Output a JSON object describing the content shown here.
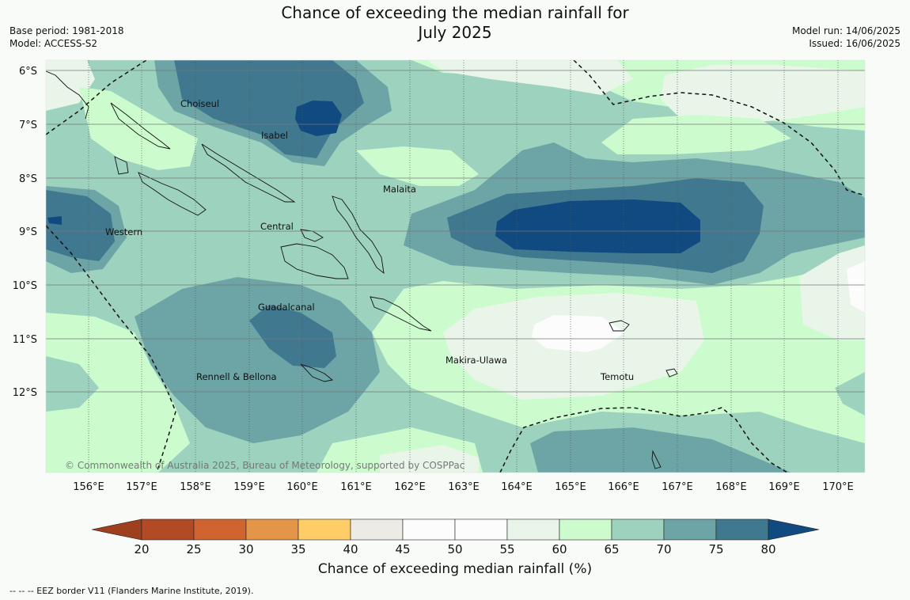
{
  "title_line1": "Chance of exceeding the median rainfall for",
  "title_line2": "July 2025",
  "base_period": "Base period: 1981-2018",
  "model": "Model: ACCESS-S2",
  "model_run": "Model run: 14/06/2025",
  "issued": "Issued: 16/06/2025",
  "copyright": "© Commonwealth of Australia 2025, Bureau of Meteorology, supported by COSPPac",
  "colorbar_title": "Chance of exceeding median rainfall (%)",
  "footnote": "--  --  -- EEZ border V11 (Flanders Marine Institute, 2019).",
  "lat_labels": [
    "6°S",
    "7°S",
    "8°S",
    "9°S",
    "10°S",
    "11°S",
    "12°S"
  ],
  "lon_labels": [
    "156°E",
    "157°E",
    "158°E",
    "159°E",
    "160°E",
    "161°E",
    "162°E",
    "163°E",
    "164°E",
    "165°E",
    "166°E",
    "167°E",
    "168°E",
    "169°E",
    "170°E"
  ],
  "place_names": [
    "Choiseul",
    "Isabel",
    "Malaita",
    "Western",
    "Central",
    "Guadalcanal",
    "Makira-Ulawa",
    "Rennell & Bellona",
    "Temotu"
  ],
  "colorbar": {
    "ticks": [
      "20",
      "25",
      "30",
      "35",
      "40",
      "45",
      "50",
      "55",
      "60",
      "65",
      "70",
      "75",
      "80"
    ],
    "colors": [
      "#b24a26",
      "#cf6430",
      "#e39548",
      "#ffcd68",
      "#ecebe6",
      "#fbfcfb",
      "#fbfcfb",
      "#eaf5ea",
      "#ccfcce",
      "#9dd2be",
      "#6da5a7",
      "#40788f"
    ],
    "under_color": "#9e3f1e",
    "over_color": "#114a80"
  }
}
